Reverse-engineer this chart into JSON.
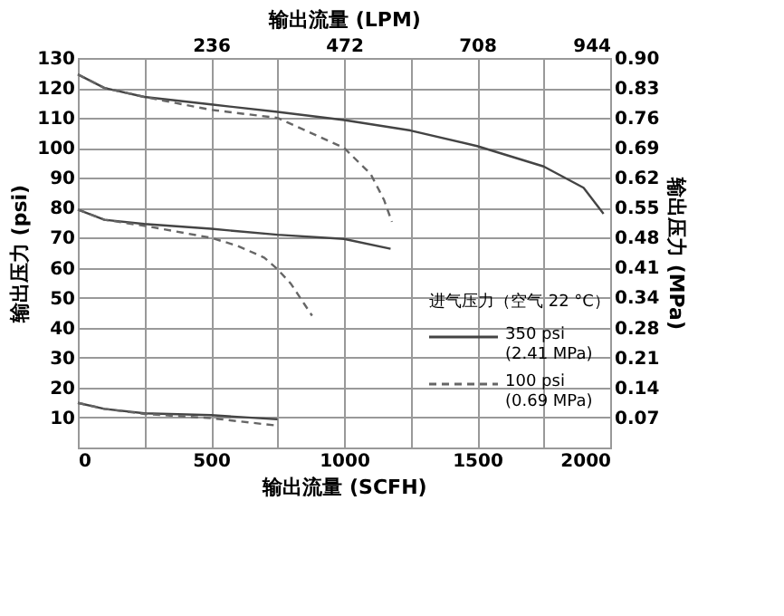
{
  "chart_data": {
    "type": "line",
    "xlabel": "输出流量 (SCFH)",
    "x2label": "输出流量 (LPM)",
    "ylabel": "输出压力 (psi)",
    "y2label": "输出压力 (MPa)",
    "legend_title": "进气压力（空气 22 °C）",
    "legend": "bottom right",
    "grid": true,
    "marker": "none",
    "xlim": [
      0,
      2000
    ],
    "xticks": [
      0,
      {
        "value": 250,
        "label": null
      },
      500,
      {
        "value": 750,
        "label": null
      },
      1000,
      {
        "value": 1250,
        "label": null
      },
      1500,
      {
        "value": 1750,
        "label": null
      },
      2000
    ],
    "x2lim": [
      0,
      944
    ],
    "x2ticks": [
      236,
      472,
      708,
      944
    ],
    "ylim": [
      0,
      130
    ],
    "yticks": [
      10,
      20,
      30,
      40,
      50,
      60,
      70,
      80,
      90,
      100,
      110,
      120,
      130
    ],
    "y2lim": [
      0,
      0.896
    ],
    "y2ticks": [
      {
        "value": 0.069,
        "label": "0.07"
      },
      {
        "value": 0.138,
        "label": "0.14"
      },
      {
        "value": 0.207,
        "label": "0.21"
      },
      {
        "value": 0.276,
        "label": "0.28"
      },
      {
        "value": 0.345,
        "label": "0.34"
      },
      {
        "value": 0.414,
        "label": "0.41"
      },
      {
        "value": 0.483,
        "label": "0.48"
      },
      {
        "value": 0.552,
        "label": "0.55"
      },
      {
        "value": 0.621,
        "label": "0.62"
      },
      {
        "value": 0.689,
        "label": "0.69"
      },
      {
        "value": 0.758,
        "label": "0.76"
      },
      {
        "value": 0.827,
        "label": "0.83"
      },
      {
        "value": 0.896,
        "label": "0.90"
      }
    ],
    "series": [
      {
        "name": "350 psi\n(2.41 MPa)",
        "color": "#444444",
        "line_style": "solid",
        "x": [
          0,
          100,
          250,
          500,
          750,
          1000,
          1250,
          1500,
          1750,
          1900,
          1975
        ],
        "values": [
          124.5,
          120,
          117,
          114.5,
          112,
          109.3,
          105.8,
          100.6,
          93.8,
          86.7,
          78
        ]
      },
      {
        "name": "100 psi\n(0.69 MPa)",
        "color": "#666666",
        "line_style": "dashed",
        "x": [
          0,
          100,
          250,
          500,
          750,
          1000,
          1100,
          1150,
          1180
        ],
        "values": [
          124.5,
          120,
          117,
          112.7,
          110,
          100,
          91.3,
          82.7,
          75.3
        ]
      },
      {
        "color": "#444444",
        "line_style": "solid",
        "x": [
          0,
          100,
          250,
          500,
          750,
          1000,
          1175
        ],
        "values": [
          79.4,
          76,
          74.6,
          73,
          71,
          69.6,
          66.3
        ]
      },
      {
        "color": "#666666",
        "line_style": "dashed",
        "x": [
          0,
          100,
          250,
          500,
          600,
          700,
          750,
          800,
          850,
          880
        ],
        "values": [
          79.4,
          76,
          74,
          70,
          67.3,
          63.4,
          59.5,
          54.7,
          48,
          44
        ]
      },
      {
        "color": "#444444",
        "line_style": "solid",
        "x": [
          0,
          100,
          250,
          500,
          750
        ],
        "values": [
          14.9,
          12.9,
          11.4,
          10.8,
          9.4
        ]
      },
      {
        "color": "#666666",
        "line_style": "dashed",
        "x": [
          0,
          100,
          250,
          500,
          750
        ],
        "values": [
          14.9,
          12.9,
          11.2,
          9.8,
          7.3
        ]
      }
    ]
  }
}
